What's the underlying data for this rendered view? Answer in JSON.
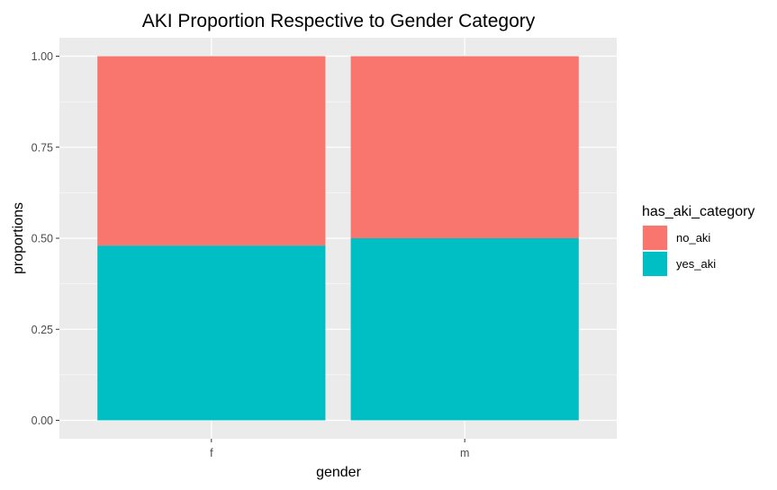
{
  "chart_data": {
    "type": "bar",
    "stacked": true,
    "title": "AKI Proportion Respective to Gender Category",
    "xlabel": "gender",
    "ylabel": "proportions",
    "categories": [
      "f",
      "m"
    ],
    "series": [
      {
        "name": "no_aki",
        "color": "#F8766D",
        "values": [
          0.52,
          0.5
        ]
      },
      {
        "name": "yes_aki",
        "color": "#00BFC4",
        "values": [
          0.48,
          0.5
        ]
      }
    ],
    "ylim": [
      0,
      1
    ],
    "yticks": [
      0.0,
      0.25,
      0.5,
      0.75,
      1.0
    ],
    "ytick_labels": [
      "0.00",
      "0.25",
      "0.50",
      "0.75",
      "1.00"
    ],
    "legend": {
      "title": "has_aki_category",
      "position": "right"
    },
    "grid": true,
    "panel_background": "#EBEBEB",
    "gridline_color": "#FFFFFF"
  }
}
